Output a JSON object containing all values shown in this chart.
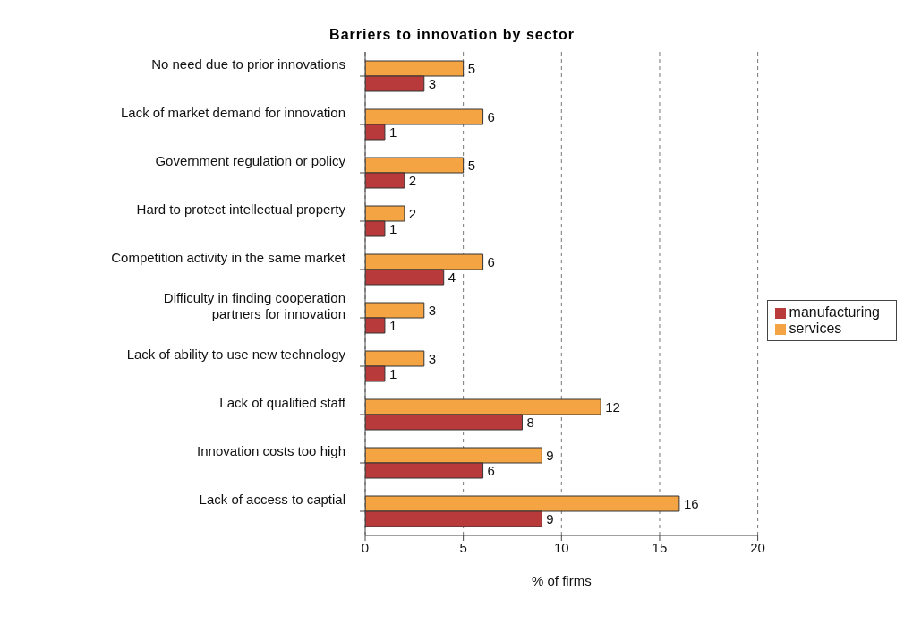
{
  "chart_data": {
    "type": "bar",
    "orientation": "horizontal",
    "title": "Barriers to innovation by sector",
    "xlabel": "% of firms",
    "categories": [
      "No need due to prior innovations",
      "Lack of market demand for innovation",
      "Government regulation or policy",
      "Hard to protect intellectual property",
      "Competition activity in the same market",
      "Difficulty in finding cooperation partners for innovation",
      "Lack of ability to use new technology",
      "Lack of qualified staff",
      "Innovation costs too high",
      "Lack of access to captial"
    ],
    "series": [
      {
        "name": "services",
        "color": "#f5a443",
        "values": [
          5,
          6,
          5,
          2,
          6,
          3,
          3,
          12,
          9,
          16
        ]
      },
      {
        "name": "manufacturing",
        "color": "#b83a3a",
        "values": [
          3,
          1,
          2,
          1,
          4,
          1,
          1,
          8,
          6,
          9
        ]
      }
    ],
    "xlim": [
      0,
      20
    ],
    "xticks": [
      0,
      5,
      10,
      15,
      20
    ],
    "grid": "x",
    "legend": "right",
    "data_labels": true
  }
}
